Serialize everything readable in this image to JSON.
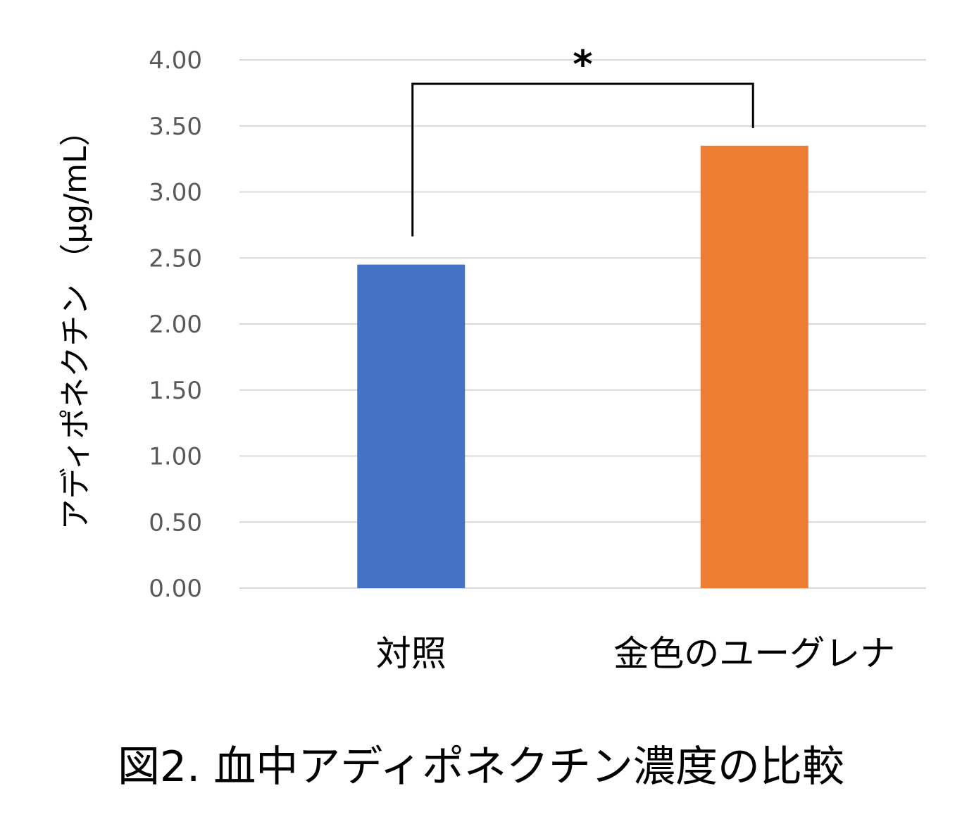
{
  "chart_data": {
    "type": "bar",
    "categories": [
      "対照",
      "金色のユーグレナ"
    ],
    "values": [
      2.45,
      3.35
    ],
    "colors": [
      "#4472C4",
      "#ED7D31"
    ],
    "ylabel": "アディポネクチン （µg/mL）",
    "ylim": [
      0,
      4
    ],
    "yticks": [
      "0.00",
      "0.50",
      "1.00",
      "1.50",
      "2.00",
      "2.50",
      "3.00",
      "3.50",
      "4.00"
    ],
    "grid": true,
    "significance": {
      "between": [
        "対照",
        "金色のユーグレナ"
      ],
      "label": "*"
    }
  },
  "caption": "図2. 血中アディポネクチン濃度の比較"
}
